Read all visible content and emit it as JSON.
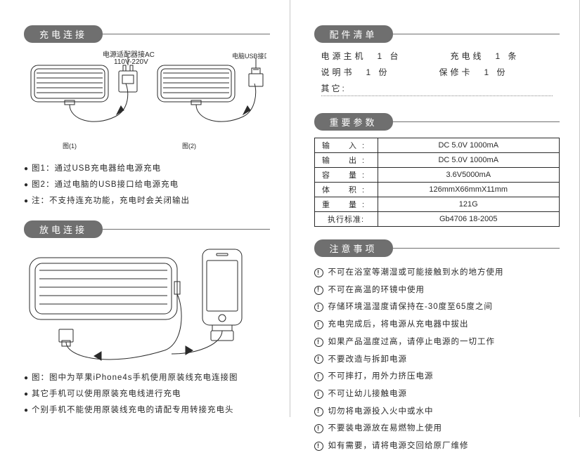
{
  "left": {
    "heading1": "充电连接",
    "fig1_top_label": "电源适配器接AC",
    "fig1_top_label2": "110V-220V",
    "fig2_label": "电脑USB接口",
    "fig1_caption": "图(1)",
    "fig2_caption": "图(2)",
    "charge_notes": [
      "图1：通过USB充电器给电源充电",
      "图2：通过电脑的USB接口给电源充电",
      "注：不支持连充功能，充电时会关闭输出"
    ],
    "heading2": "放电连接",
    "discharge_notes": [
      "图：图中为苹果iPhone4s手机使用原装线充电连接图",
      "其它手机可以使用原装充电线进行充电",
      "个别手机不能使用原装线充电的请配专用转接充电头"
    ]
  },
  "right": {
    "heading1": "配件清单",
    "acc1a": "电源主机　1 台",
    "acc1b": "充电线　1 条",
    "acc2a": "说明书　1 份",
    "acc2b": "保修卡　1 份",
    "acc_other_label": "其它:",
    "heading2": "重要参数",
    "params": [
      {
        "label": "输　入:",
        "value": "DC 5.0V 1000mA",
        "tight": false
      },
      {
        "label": "输　出:",
        "value": "DC 5.0V 1000mA",
        "tight": false
      },
      {
        "label": "容　量:",
        "value": "3.6V5000mA",
        "tight": false
      },
      {
        "label": "体　积:",
        "value": "126mmX66mmX11mm",
        "tight": false
      },
      {
        "label": "重　量:",
        "value": "121G",
        "tight": false
      },
      {
        "label": "执行标准:",
        "value": "Gb4706 18-2005",
        "tight": true
      }
    ],
    "heading3": "注意事项",
    "notices": [
      "不可在浴室等潮湿或可能接触到水的地方使用",
      "不可在高温的环镜中使用",
      "存储环境温湿度请保持在-30度至65度之间",
      "充电完成后，将电源从充电器中拔出",
      "如果产品温度过高，请停止电源的一切工作",
      "不要改造与拆卸电源",
      "不可摔打，用外力挤压电源",
      "不可让幼儿接触电源",
      "切勿将电源投入火中或水中",
      "不要装电源放在易燃物上使用",
      "如有需要，请将电源交回给原厂维修"
    ]
  },
  "style": {
    "pill_bg": "#6f6f6f",
    "text_color": "#2a2a2a",
    "border_color": "#2a2a2a"
  }
}
